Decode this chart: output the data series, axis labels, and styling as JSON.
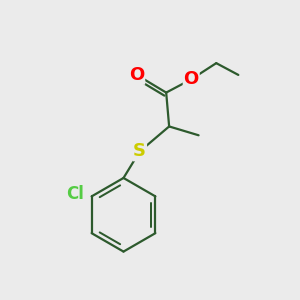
{
  "bg_color": "#ebebeb",
  "bond_color": "#2d5a2d",
  "O_color": "#ff0000",
  "S_color": "#cccc00",
  "Cl_color": "#55cc44",
  "line_width": 1.6,
  "font_size_atom": 12,
  "xlim": [
    0,
    10
  ],
  "ylim": [
    0,
    10
  ]
}
